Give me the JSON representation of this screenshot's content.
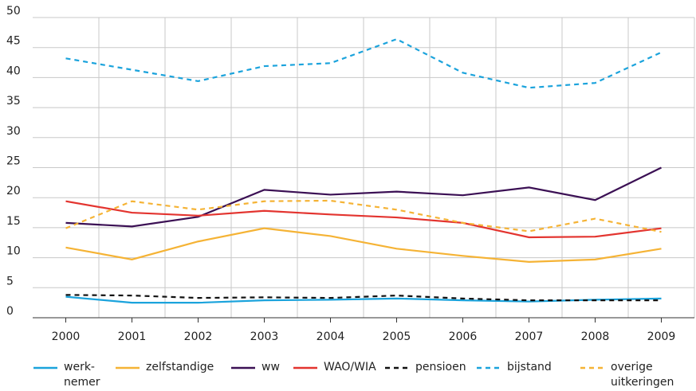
{
  "chart_data": {
    "type": "line",
    "categories": [
      "2000",
      "2001",
      "2002",
      "2003",
      "2004",
      "2005",
      "2006",
      "2007",
      "2008",
      "2009"
    ],
    "ylim": [
      0,
      50
    ],
    "yticks": [
      0,
      5,
      10,
      15,
      20,
      25,
      30,
      35,
      40,
      45,
      50
    ],
    "grid": true,
    "series": [
      {
        "name": "werk-\nnemer",
        "color": "#1ba3dc",
        "line_style": "solid",
        "values": [
          3.5,
          2.5,
          2.5,
          2.9,
          3.0,
          3.2,
          2.9,
          2.7,
          3.0,
          3.2
        ]
      },
      {
        "name": "zelfstandige",
        "color": "#f5b335",
        "line_style": "solid",
        "values": [
          11.7,
          9.7,
          12.7,
          14.9,
          13.6,
          11.5,
          10.3,
          9.3,
          9.7,
          11.5
        ]
      },
      {
        "name": "ww",
        "color": "#3b1054",
        "line_style": "solid",
        "values": [
          15.8,
          15.2,
          16.8,
          21.3,
          20.5,
          21.0,
          20.4,
          21.7,
          19.6,
          25.0
        ]
      },
      {
        "name": "WAO/WIA",
        "color": "#e3342f",
        "line_style": "solid",
        "values": [
          19.4,
          17.5,
          17.0,
          17.8,
          17.2,
          16.7,
          15.8,
          13.4,
          13.5,
          14.9
        ]
      },
      {
        "name": "pensioen",
        "color": "#111111",
        "line_style": "dashed",
        "values": [
          3.8,
          3.7,
          3.3,
          3.4,
          3.3,
          3.7,
          3.2,
          2.9,
          2.9,
          2.9
        ]
      },
      {
        "name": "bijstand",
        "color": "#1ba3dc",
        "line_style": "dashed",
        "values": [
          43.2,
          41.3,
          39.4,
          41.9,
          42.4,
          46.4,
          40.8,
          38.3,
          39.1,
          44.2
        ]
      },
      {
        "name": "overige\nuitkeringen",
        "color": "#f5b335",
        "line_style": "dashed",
        "values": [
          14.9,
          19.4,
          18.0,
          19.4,
          19.5,
          18.0,
          15.8,
          14.4,
          16.5,
          14.3
        ]
      }
    ]
  }
}
